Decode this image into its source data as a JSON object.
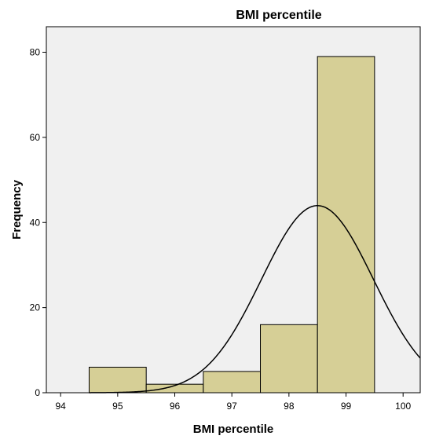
{
  "chart_data": {
    "type": "bar",
    "title": "BMI percentile",
    "xlabel": "BMI percentile",
    "ylabel": "Frequency",
    "xlim": [
      93.75,
      100.3
    ],
    "ylim": [
      0,
      86
    ],
    "x_ticks": [
      94,
      95,
      96,
      97,
      98,
      99,
      100
    ],
    "y_ticks": [
      0,
      20,
      40,
      60,
      80
    ],
    "bins": [
      {
        "start": 94.5,
        "end": 95.5,
        "value": 6
      },
      {
        "start": 95.5,
        "end": 96.5,
        "value": 2
      },
      {
        "start": 96.5,
        "end": 97.5,
        "value": 5
      },
      {
        "start": 97.5,
        "end": 98.5,
        "value": 16
      },
      {
        "start": 98.5,
        "end": 99.5,
        "value": 79
      }
    ],
    "normal_curve": {
      "mean": 98.5,
      "sd": 0.98,
      "n": 108,
      "bin_width": 1
    },
    "colors": {
      "plot_background": "#f0f0f0",
      "bar_fill": "#d6cf96",
      "bar_stroke": "#000000",
      "curve": "#000000"
    }
  }
}
